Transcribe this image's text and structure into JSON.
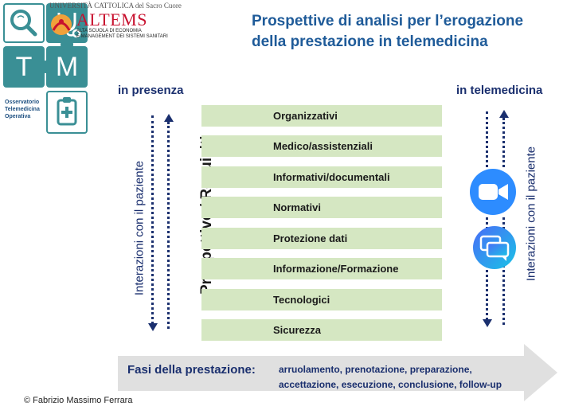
{
  "logo": {
    "university": "UNIVERSITÀ CATTOLICA del Sacro Cuore",
    "brand": "ALTEMS",
    "brand_subtitle_1": "ALTA SCUOLA DI ECONOMIA",
    "brand_subtitle_2": "E MANAGEMENT DEI SISTEMI SANITARI",
    "letter_t": "T",
    "letter_m": "M",
    "observatory_1": "Osservatorio",
    "observatory_2": "Telemedicina",
    "observatory_3": "Operativa"
  },
  "title": {
    "line1": "Prospettive di analisi per l’erogazione",
    "line2": "della prestazione in telemedicina"
  },
  "left_label": "in presenza",
  "right_label": "in telemedicina",
  "left_vertical": "Interazioni con il paziente",
  "right_vertical": "Interazioni con il paziente",
  "center_vertical": "Prospettive / Requisiti",
  "requirements": [
    "Organizzativi",
    "Medico/assistenziali",
    "Informativi/documentali",
    "Normativi",
    "Protezione dati",
    "Informazione/Formazione",
    "Tecnologici",
    "Sicurezza"
  ],
  "phases": {
    "label": "Fasi della prestazione:",
    "line1": "arruolamento, prenotazione, preparazione,",
    "line2": "accettazione, esecuzione, conclusione, follow-up"
  },
  "copyright": "© Fabrizio Massimo Ferrara",
  "colors": {
    "teal": "#3a8f95",
    "bar": "#d5e7c2",
    "navy": "#1a2f6e",
    "title_blue": "#1f5b99",
    "altems_red": "#c8102e"
  },
  "icons": [
    "search-icon",
    "stethoscope-icon",
    "clipboard-icon",
    "video-camera-icon",
    "chat-icon"
  ]
}
